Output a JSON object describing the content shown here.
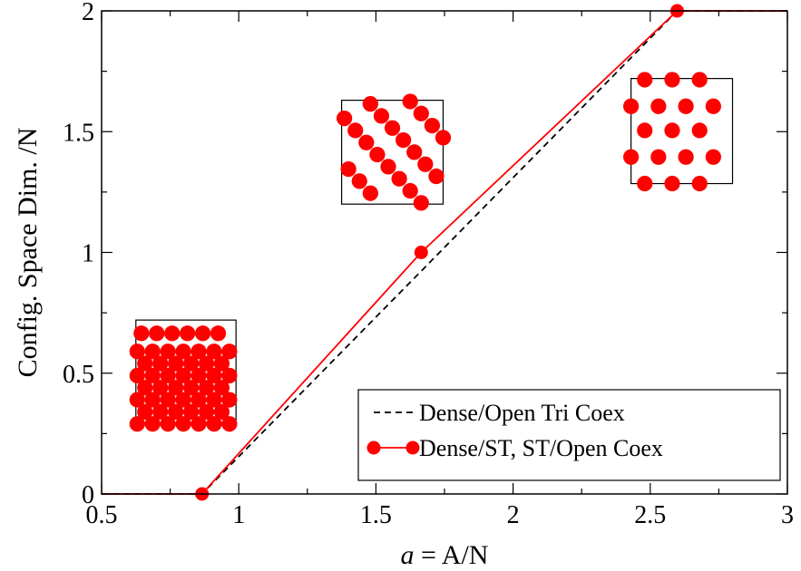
{
  "chart_data": {
    "type": "line",
    "xlabel_var": "a",
    "xlabel_rest": " = A/N",
    "ylabel": "Config. Space Dim. /N",
    "xlim": [
      0.5,
      3
    ],
    "ylim": [
      0,
      2
    ],
    "x_ticks": [
      0.5,
      1,
      1.5,
      2,
      2.5,
      3
    ],
    "x_tick_labels": [
      "0.5",
      "1",
      "1.5",
      "2",
      "2.5",
      "3"
    ],
    "y_ticks": [
      0,
      0.5,
      1,
      1.5,
      2
    ],
    "y_tick_labels": [
      "0",
      "0.5",
      "1",
      "1.5",
      "2"
    ],
    "grid": false,
    "legend_position": "bottom-right",
    "series": [
      {
        "name": "Dense/Open Tri Coex",
        "style": "dashed",
        "color": "#000000",
        "markers": false,
        "x": [
          0.5,
          0.866,
          2.598,
          3.0
        ],
        "y": [
          0,
          0,
          2,
          2
        ]
      },
      {
        "name": "Dense/ST, ST/Open Coex",
        "style": "solid",
        "color": "#ff0000",
        "markers": true,
        "x": [
          0.5,
          0.866,
          1.665,
          2.598,
          3.0
        ],
        "y": [
          0,
          0,
          1,
          2,
          2
        ]
      }
    ],
    "insets": [
      {
        "name": "dense-packing",
        "box_x": [
          0.625,
          0.99
        ],
        "box_y": [
          0.29,
          0.72
        ],
        "dot_radius_x": 0.0285,
        "rows": [
          {
            "y": 0.29,
            "x": [
              0.63,
              0.686,
              0.742,
              0.798,
              0.854,
              0.91,
              0.966
            ]
          },
          {
            "y": 0.34,
            "x": [
              0.658,
              0.714,
              0.77,
              0.826,
              0.882,
              0.938
            ]
          },
          {
            "y": 0.39,
            "x": [
              0.63,
              0.686,
              0.742,
              0.798,
              0.854,
              0.91,
              0.966
            ]
          },
          {
            "y": 0.44,
            "x": [
              0.658,
              0.714,
              0.77,
              0.826,
              0.882,
              0.938
            ]
          },
          {
            "y": 0.49,
            "x": [
              0.63,
              0.686,
              0.742,
              0.798,
              0.854,
              0.91,
              0.966
            ]
          },
          {
            "y": 0.54,
            "x": [
              0.658,
              0.714,
              0.77,
              0.826,
              0.882,
              0.938
            ]
          },
          {
            "y": 0.59,
            "x": [
              0.63,
              0.686,
              0.742,
              0.798,
              0.854,
              0.91,
              0.966
            ]
          },
          {
            "y": 0.665,
            "x": [
              0.645,
              0.701,
              0.757,
              0.813,
              0.869,
              0.925
            ]
          }
        ]
      },
      {
        "name": "square-triangle-packing",
        "box_x": [
          1.375,
          1.745
        ],
        "box_y": [
          1.2,
          1.63
        ],
        "dot_radius_x": 0.0285,
        "dots": [
          [
            1.385,
            1.555
          ],
          [
            1.425,
            1.505
          ],
          [
            1.465,
            1.455
          ],
          [
            1.505,
            1.405
          ],
          [
            1.545,
            1.355
          ],
          [
            1.585,
            1.305
          ],
          [
            1.625,
            1.255
          ],
          [
            1.665,
            1.205
          ],
          [
            1.4,
            1.345
          ],
          [
            1.44,
            1.295
          ],
          [
            1.48,
            1.245
          ],
          [
            1.48,
            1.615
          ],
          [
            1.52,
            1.565
          ],
          [
            1.56,
            1.515
          ],
          [
            1.6,
            1.465
          ],
          [
            1.64,
            1.415
          ],
          [
            1.68,
            1.365
          ],
          [
            1.72,
            1.315
          ],
          [
            1.625,
            1.625
          ],
          [
            1.665,
            1.575
          ],
          [
            1.705,
            1.525
          ],
          [
            1.745,
            1.475
          ]
        ]
      },
      {
        "name": "open-triangular-packing",
        "box_x": [
          2.43,
          2.8
        ],
        "box_y": [
          1.285,
          1.72
        ],
        "dot_radius_x": 0.0285,
        "dots": [
          [
            2.48,
            1.715
          ],
          [
            2.58,
            1.715
          ],
          [
            2.68,
            1.715
          ],
          [
            2.43,
            1.605
          ],
          [
            2.53,
            1.605
          ],
          [
            2.63,
            1.605
          ],
          [
            2.73,
            1.605
          ],
          [
            2.48,
            1.505
          ],
          [
            2.58,
            1.505
          ],
          [
            2.68,
            1.505
          ],
          [
            2.43,
            1.395
          ],
          [
            2.53,
            1.395
          ],
          [
            2.63,
            1.395
          ],
          [
            2.73,
            1.395
          ],
          [
            2.48,
            1.285
          ],
          [
            2.58,
            1.285
          ],
          [
            2.68,
            1.285
          ]
        ]
      }
    ]
  }
}
